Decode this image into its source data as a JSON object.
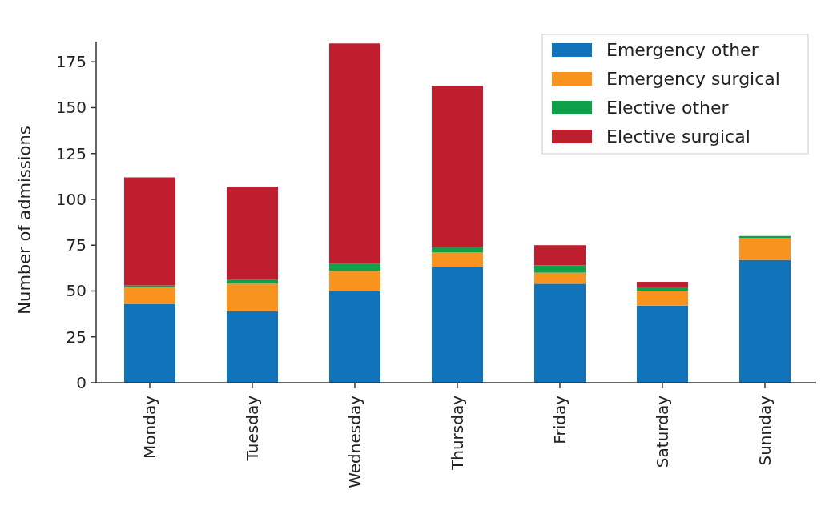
{
  "chart_data": {
    "type": "bar",
    "stacked": true,
    "ylabel": "Number of admissions",
    "categories": [
      "Monday",
      "Tuesday",
      "Wednesday",
      "Thursday",
      "Friday",
      "Saturday",
      "Sunnday"
    ],
    "series": [
      {
        "name": "Emergency other",
        "color": "#1174bb",
        "values": [
          43,
          39,
          50,
          63,
          54,
          42,
          67
        ]
      },
      {
        "name": "Emergency surgical",
        "color": "#f7931e",
        "values": [
          9,
          15,
          11,
          8,
          6,
          8,
          12
        ]
      },
      {
        "name": "Elective other",
        "color": "#0fa14a",
        "values": [
          1,
          2,
          4,
          3,
          4,
          2,
          1
        ]
      },
      {
        "name": "Elective surgical",
        "color": "#be1e2d",
        "values": [
          59,
          51,
          120,
          88,
          11,
          3,
          0
        ]
      }
    ],
    "ylim": [
      0,
      186
    ],
    "yticks": [
      0,
      25,
      50,
      75,
      100,
      125,
      150,
      175
    ],
    "grid": false,
    "legend": "top right"
  }
}
